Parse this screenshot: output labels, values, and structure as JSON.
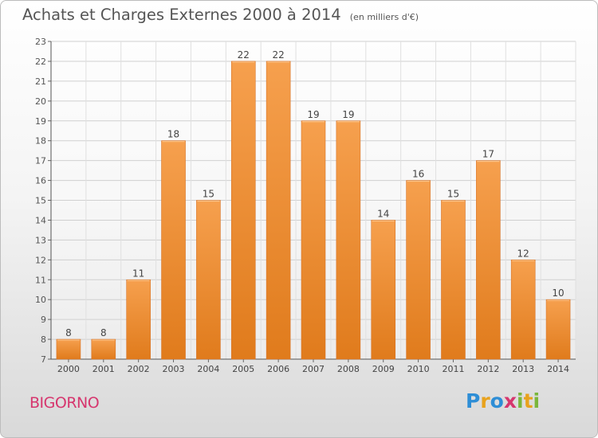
{
  "header": {
    "title": "Achats et Charges Externes 2000 à 2014",
    "subtitle": "(en milliers d'€)"
  },
  "footer": {
    "commune": "BIGORNO",
    "logo_text": "Proxiti",
    "logo_colors": [
      "#2e8ed6",
      "#e8a21d",
      "#2e8ed6",
      "#d6366e",
      "#7ab63c",
      "#e8a21d",
      "#7ab63c"
    ]
  },
  "chart_data": {
    "type": "bar",
    "categories": [
      "2000",
      "2001",
      "2002",
      "2003",
      "2004",
      "2005",
      "2006",
      "2007",
      "2008",
      "2009",
      "2010",
      "2011",
      "2012",
      "2013",
      "2014"
    ],
    "values": [
      8,
      8,
      11,
      18,
      15,
      22,
      22,
      19,
      19,
      14,
      16,
      15,
      17,
      12,
      10
    ],
    "ylim": [
      7,
      23
    ],
    "yticks": [
      7,
      8,
      9,
      10,
      11,
      12,
      13,
      14,
      15,
      16,
      17,
      18,
      19,
      20,
      21,
      22,
      23
    ],
    "grid": true,
    "bar_color_top": "#f6a04e",
    "bar_color_bottom": "#e07b1c"
  }
}
